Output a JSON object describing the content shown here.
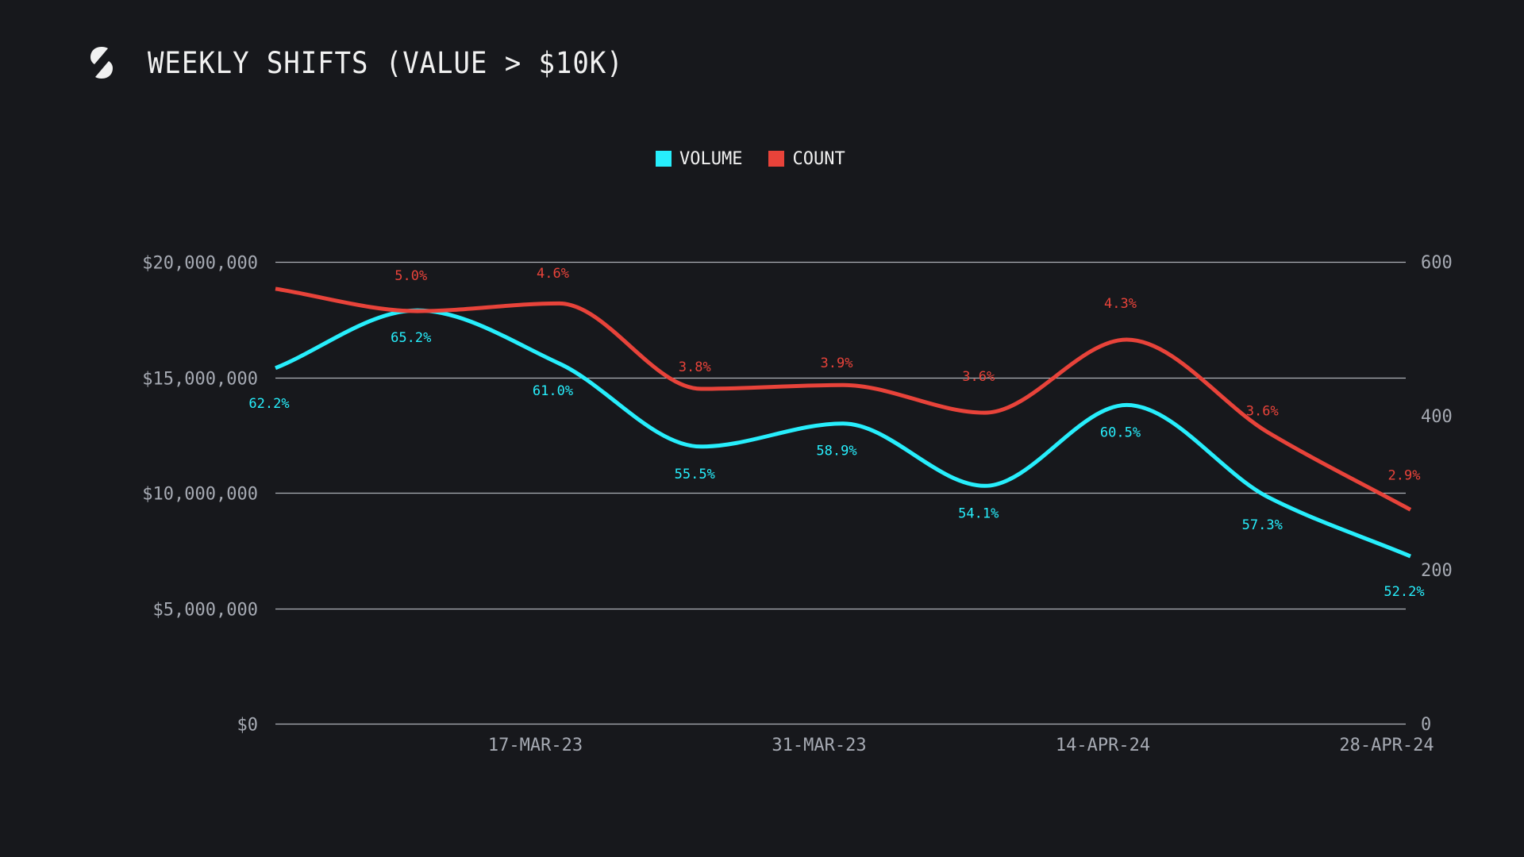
{
  "header": {
    "title": "WEEKLY SHIFTS (VALUE > $10K)",
    "logo_icon": "slashed-s-logo-icon"
  },
  "colors": {
    "background": "#17181c",
    "volume": "#27eefc",
    "count": "#e8433a",
    "grid": "#c9ccd3",
    "axis_text": "#a6aab3",
    "title": "#f1f1f1"
  },
  "chart_data": {
    "type": "line",
    "title": "WEEKLY SHIFTS (VALUE > $10K)",
    "legend_position": "top-center",
    "grid": true,
    "x_tick_labels": [
      "17-MAR-23",
      "31-MAR-23",
      "14-APR-24",
      "28-APR-24"
    ],
    "x_tick_indices": [
      2,
      4,
      6,
      8
    ],
    "point_count": 9,
    "y_left": {
      "range": [
        0,
        20000000
      ],
      "ticks": [
        0,
        5000000,
        10000000,
        15000000,
        20000000
      ],
      "tick_labels": [
        "$0",
        "$5,000,000",
        "$10,000,000",
        "$15,000,000",
        "$20,000,000"
      ]
    },
    "y_right": {
      "range": [
        0,
        600
      ],
      "ticks": [
        0,
        200,
        400,
        600
      ],
      "tick_labels": [
        "0",
        "200",
        "400",
        "600"
      ]
    },
    "series": [
      {
        "name": "VOLUME",
        "axis": "left",
        "values": [
          15400000,
          17900000,
          15600000,
          12000000,
          13000000,
          10300000,
          13800000,
          9800000,
          7250000
        ],
        "labels": [
          "62.2%",
          "65.2%",
          "61.0%",
          "55.5%",
          "58.9%",
          "54.1%",
          "60.5%",
          "57.3%",
          "52.2%"
        ]
      },
      {
        "name": "COUNT",
        "axis": "right",
        "values": [
          565,
          536,
          546,
          435,
          440,
          404,
          499,
          378,
          278
        ],
        "labels": [
          "",
          "5.0%",
          "4.6%",
          "3.8%",
          "3.9%",
          "3.6%",
          "4.3%",
          "3.6%",
          "2.9%"
        ]
      }
    ]
  }
}
